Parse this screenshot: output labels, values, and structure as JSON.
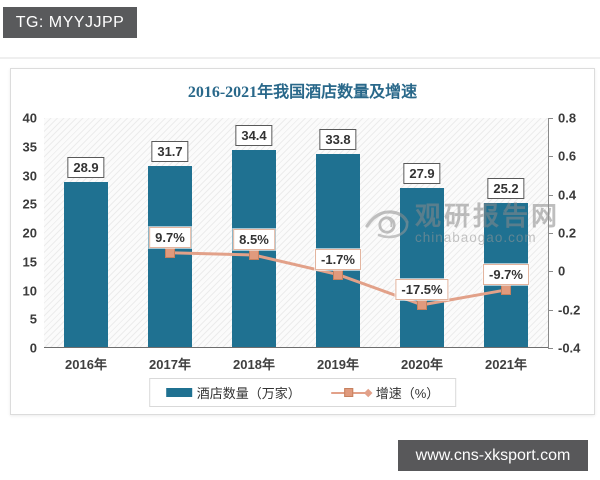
{
  "banner_tag": "TG: MYYJJPP",
  "site_banner": "www.cns-xksport.com",
  "watermark": {
    "name": "观研报告网",
    "domain": "chinabaogao.com"
  },
  "chart_data": {
    "type": "bar",
    "title": "2016-2021年我国酒店数量及增速",
    "categories": [
      "2016年",
      "2017年",
      "2018年",
      "2019年",
      "2020年",
      "2021年"
    ],
    "series": [
      {
        "name": "酒店数量（万家）",
        "type": "bar",
        "axis": "left",
        "color": "#1f7191",
        "values": [
          28.9,
          31.7,
          34.4,
          33.8,
          27.9,
          25.2
        ],
        "labels": [
          "28.9",
          "31.7",
          "34.4",
          "33.8",
          "27.9",
          "25.2"
        ]
      },
      {
        "name": "增速（%）",
        "type": "line",
        "axis": "right",
        "color": "#e2a189",
        "values": [
          null,
          0.097,
          0.085,
          -0.017,
          -0.175,
          -0.097
        ],
        "labels": [
          null,
          "9.7%",
          "8.5%",
          "-1.7%",
          "-17.5%",
          "-9.7%"
        ]
      }
    ],
    "left_axis": {
      "min": 0,
      "max": 40,
      "tick_values": [
        40,
        35,
        30,
        25,
        20,
        15,
        10,
        5,
        0
      ],
      "tick_labels": [
        "40",
        "35",
        "30",
        "25",
        "20",
        "15",
        "10",
        "5",
        "0"
      ]
    },
    "right_axis": {
      "min": -0.4,
      "max": 0.8,
      "tick_values": [
        0.8,
        0.6,
        0.4,
        0.2,
        0,
        -0.2,
        -0.4
      ],
      "tick_labels": [
        "0.8",
        "0.6",
        "0.4",
        "0.2",
        "0",
        "-0.2",
        "-0.4"
      ]
    },
    "legend": [
      "酒店数量（万家）",
      "增速（%）"
    ],
    "legend_position": "bottom",
    "grid": false
  }
}
